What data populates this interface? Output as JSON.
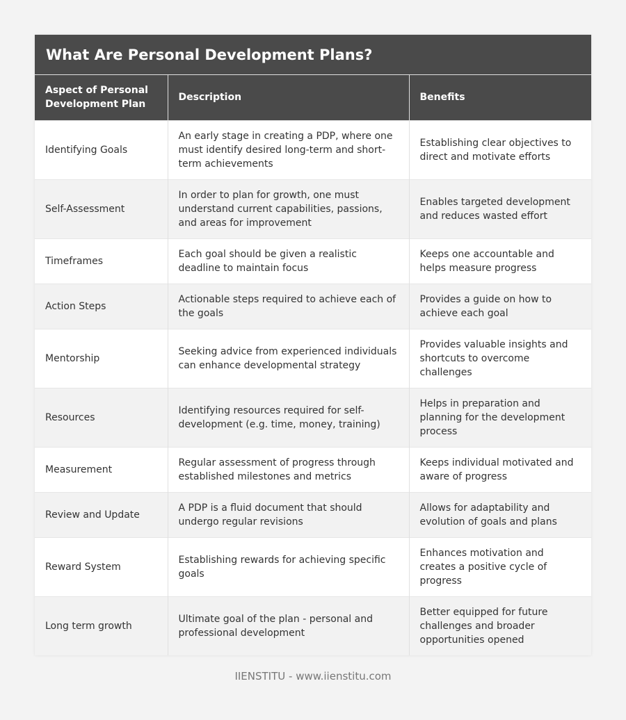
{
  "title": "What Are Personal Development Plans?",
  "table": {
    "headers": [
      "Aspect of Personal Development Plan",
      "Description",
      "Benefits"
    ],
    "rows": [
      {
        "aspect": "Identifying Goals",
        "description": "An early stage in creating a PDP, where one must identify desired long-term and short-term achievements",
        "benefits": "Establishing clear objectives to direct and motivate efforts"
      },
      {
        "aspect": "Self-Assessment",
        "description": "In order to plan for growth, one must understand current capabilities, passions, and areas for improvement",
        "benefits": "Enables targeted development and reduces wasted effort"
      },
      {
        "aspect": "Timeframes",
        "description": "Each goal should be given a realistic deadline to maintain focus",
        "benefits": "Keeps one accountable and helps measure progress"
      },
      {
        "aspect": "Action Steps",
        "description": "Actionable steps required to achieve each of the goals",
        "benefits": "Provides a guide on how to achieve each goal"
      },
      {
        "aspect": "Mentorship",
        "description": "Seeking advice from experienced individuals can enhance developmental strategy",
        "benefits": "Provides valuable insights and shortcuts to overcome challenges"
      },
      {
        "aspect": "Resources",
        "description": "Identifying resources required for self-development (e.g. time, money, training)",
        "benefits": "Helps in preparation and planning for the development process"
      },
      {
        "aspect": "Measurement",
        "description": "Regular assessment of progress through established milestones and metrics",
        "benefits": "Keeps individual motivated and aware of progress"
      },
      {
        "aspect": "Review and Update",
        "description": "A PDP is a fluid document that should undergo regular revisions",
        "benefits": "Allows for adaptability and evolution of goals and plans"
      },
      {
        "aspect": "Reward System",
        "description": "Establishing rewards for achieving specific goals",
        "benefits": "Enhances motivation and creates a positive cycle of progress"
      },
      {
        "aspect": "Long term growth",
        "description": "Ultimate goal of the plan - personal and professional development",
        "benefits": "Better equipped for future challenges and broader opportunities opened"
      }
    ]
  },
  "footer": "IIENSTITU - www.iienstitu.com",
  "colors": {
    "header_bg": "#4a4a4a",
    "header_text": "#ffffff",
    "row_alt_bg": "#f2f2f2",
    "body_text": "#333333",
    "page_bg": "#f3f3f3"
  }
}
